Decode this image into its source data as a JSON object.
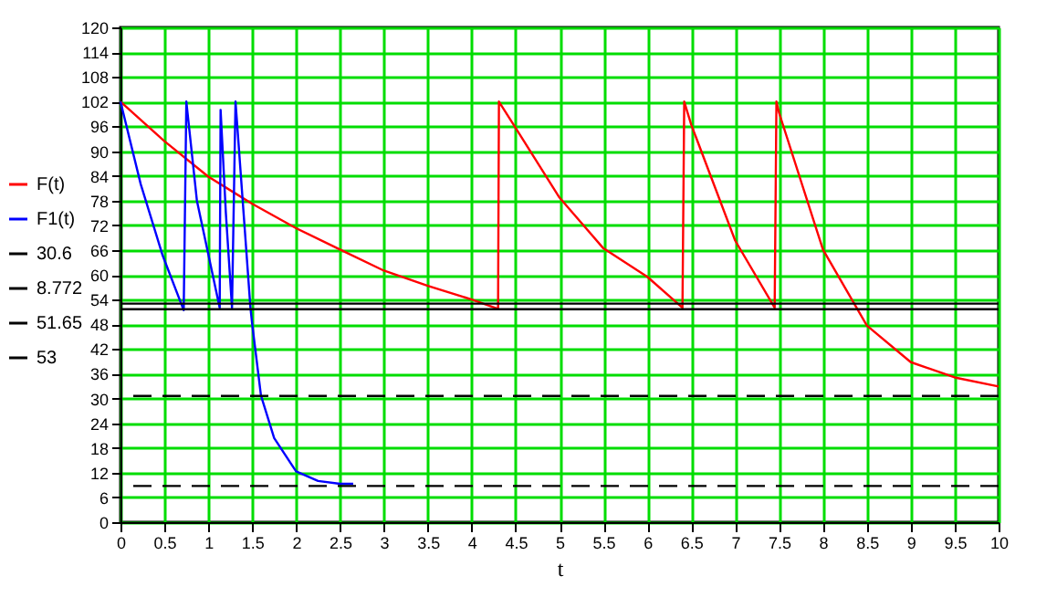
{
  "chart_data": {
    "type": "line",
    "xlabel": "t",
    "xlim": [
      0,
      10
    ],
    "xticks": [
      0,
      0.5,
      1,
      1.5,
      2,
      2.5,
      3,
      3.5,
      4,
      4.5,
      5,
      5.5,
      6,
      6.5,
      7,
      7.5,
      8,
      8.5,
      9,
      9.5,
      10
    ],
    "ylim": [
      0,
      120
    ],
    "yticks": [
      0,
      6,
      12,
      18,
      24,
      30,
      36,
      42,
      48,
      54,
      60,
      66,
      72,
      78,
      84,
      90,
      96,
      102,
      108,
      114,
      120
    ],
    "grid": true,
    "legend": "left",
    "line_style": "solid",
    "series": [
      {
        "name": "F(t)",
        "color": "#ff0000",
        "x": [
          0,
          0.5,
          1,
          1.5,
          2,
          2.5,
          3,
          3.5,
          4,
          4.3,
          4.31,
          4.5,
          5,
          5.5,
          6,
          6.4,
          6.42,
          6.5,
          7,
          7.45,
          7.47,
          7.5,
          8,
          8.5,
          9,
          9.5,
          10
        ],
        "values": [
          102,
          92.4,
          83.8,
          77.2,
          71.3,
          66.1,
          61,
          57.3,
          54,
          51.7,
          102,
          95.6,
          78.7,
          66.4,
          59.5,
          52,
          102,
          96.4,
          68.3,
          52,
          102,
          99.3,
          66.1,
          47.7,
          38.8,
          35.1,
          32.9
        ]
      },
      {
        "name": "F1(t)",
        "color": "#0000ff",
        "x": [
          0,
          0.23,
          0.48,
          0.72,
          0.75,
          0.87,
          1.13,
          1.14,
          1.2,
          1.27,
          1.31,
          1.48,
          1.5,
          1.6,
          1.75,
          2,
          2.25,
          2.5,
          2.65
        ],
        "values": [
          102,
          82,
          64.7,
          51.4,
          102,
          78,
          52,
          100,
          75,
          52,
          102,
          52,
          48,
          30.7,
          20.4,
          12.3,
          10,
          9.3,
          9.3
        ]
      }
    ],
    "ref_lines": [
      {
        "axis": "y",
        "value": 30.6,
        "label": "30.6",
        "color": "#000000",
        "line_style": "dashed"
      },
      {
        "axis": "y",
        "value": 8.772,
        "label": "8.772",
        "color": "#000000",
        "line_style": "dashed"
      },
      {
        "axis": "y",
        "value": 51.65,
        "label": "51.65",
        "color": "#000000",
        "line_style": "solid"
      },
      {
        "axis": "y",
        "value": 53,
        "label": "53",
        "color": "#000000",
        "line_style": "solid"
      }
    ]
  }
}
